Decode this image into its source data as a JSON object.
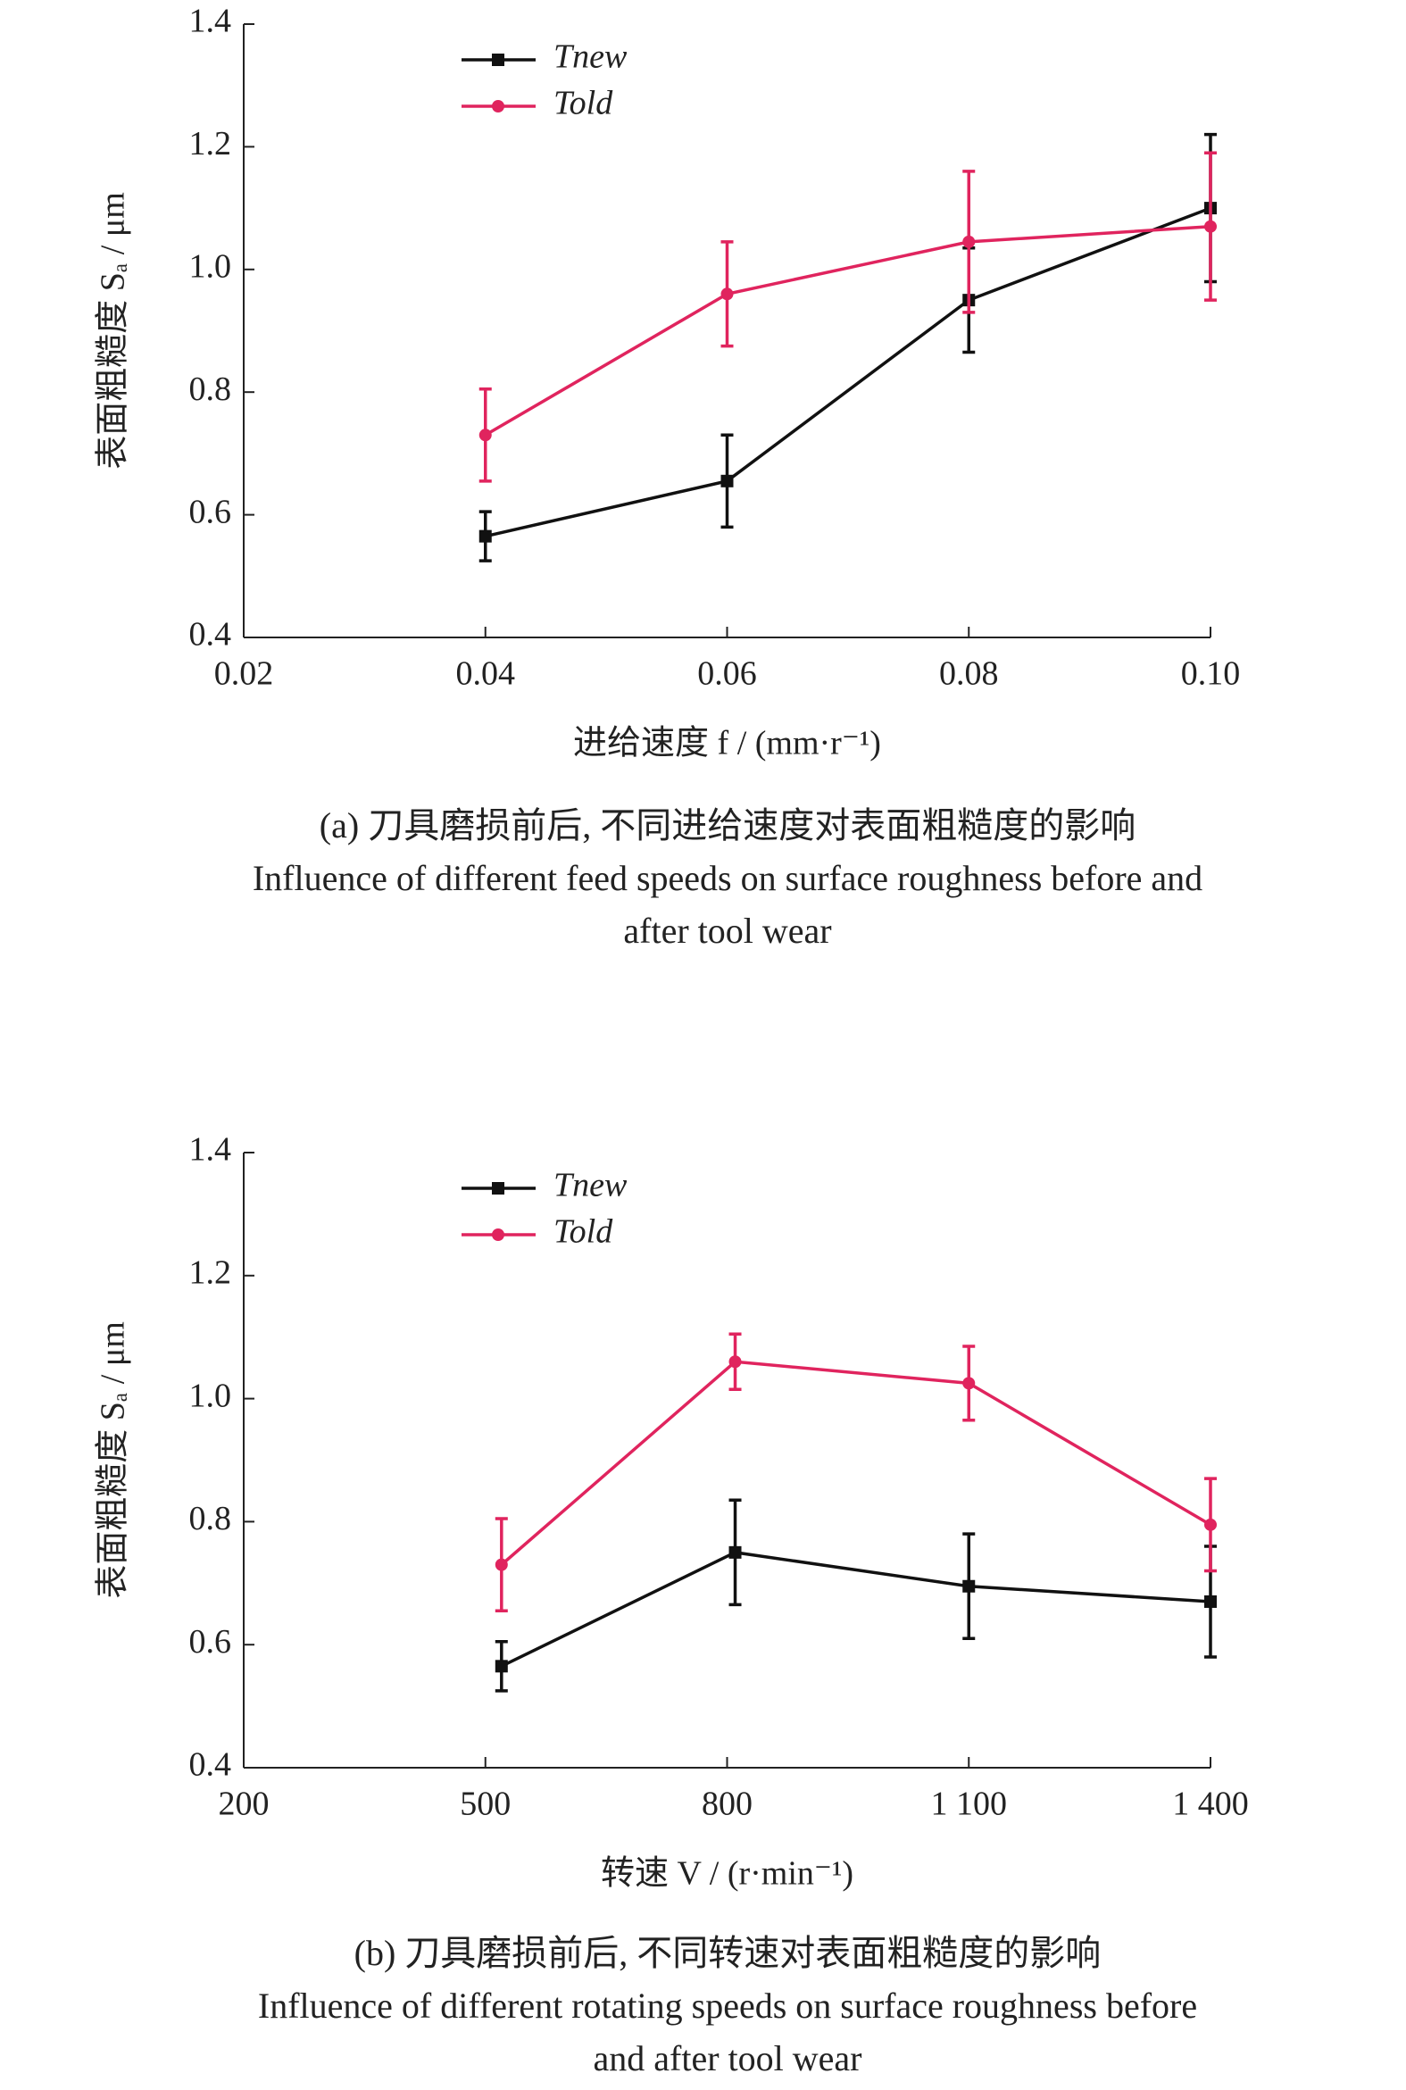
{
  "chart_data": [
    {
      "type": "line",
      "x_label": "进给速度 f / (mm·r⁻¹)",
      "y_label": "表面粗糙度 Sₐ / μm",
      "caption": [
        "(a) 刀具磨损前后, 不同进给速度对表面粗糙度的影响",
        "Influence of different feed speeds on surface roughness before and",
        "after tool wear"
      ],
      "x": [
        0.04,
        0.06,
        0.08,
        0.1
      ],
      "series": [
        {
          "name": "Tnew",
          "color": "#111111",
          "marker": "square",
          "values": [
            0.565,
            0.655,
            0.95,
            1.1
          ],
          "errors": [
            0.04,
            0.075,
            0.085,
            0.12
          ]
        },
        {
          "name": "Told",
          "color": "#e0245e",
          "marker": "circle",
          "values": [
            0.73,
            0.96,
            1.045,
            1.07
          ],
          "errors": [
            0.075,
            0.085,
            0.115,
            0.12
          ]
        }
      ],
      "xlim": [
        0.02,
        0.1
      ],
      "xticks": [
        0.02,
        0.04,
        0.06,
        0.08,
        {
          "value": 0.1,
          "label": "0.10"
        }
      ],
      "ylim": [
        0.4,
        1.4
      ],
      "yticks": [
        0.4,
        0.6,
        0.8,
        {
          "value": 1,
          "label": "1.0"
        },
        1.2,
        1.4
      ],
      "legend": "upper left"
    },
    {
      "type": "line",
      "x_label": "转速 V / (r·min⁻¹)",
      "y_label": "表面粗糙度 Sₐ / μm",
      "caption": [
        "(b) 刀具磨损前后, 不同转速对表面粗糙度的影响",
        "Influence of different rotating speeds on surface roughness before",
        "and after tool wear"
      ],
      "x": [
        520,
        810,
        1100,
        1400
      ],
      "series": [
        {
          "name": "Tnew",
          "color": "#111111",
          "marker": "square",
          "values": [
            0.565,
            0.75,
            0.695,
            0.67
          ],
          "errors": [
            0.04,
            0.085,
            0.085,
            0.09
          ]
        },
        {
          "name": "Told",
          "color": "#e0245e",
          "marker": "circle",
          "values": [
            0.73,
            1.06,
            1.025,
            0.795
          ],
          "errors": [
            0.075,
            0.045,
            0.06,
            0.075
          ]
        }
      ],
      "xlim": [
        200,
        1400
      ],
      "xticks": [
        200,
        500,
        800,
        {
          "value": 1100,
          "label": "1 100"
        },
        {
          "value": 1400,
          "label": "1 400"
        }
      ],
      "ylim": [
        0.4,
        1.4
      ],
      "yticks": [
        0.4,
        0.6,
        0.8,
        {
          "value": 1,
          "label": "1.0"
        },
        1.2,
        1.4
      ],
      "legend": "upper left"
    }
  ]
}
